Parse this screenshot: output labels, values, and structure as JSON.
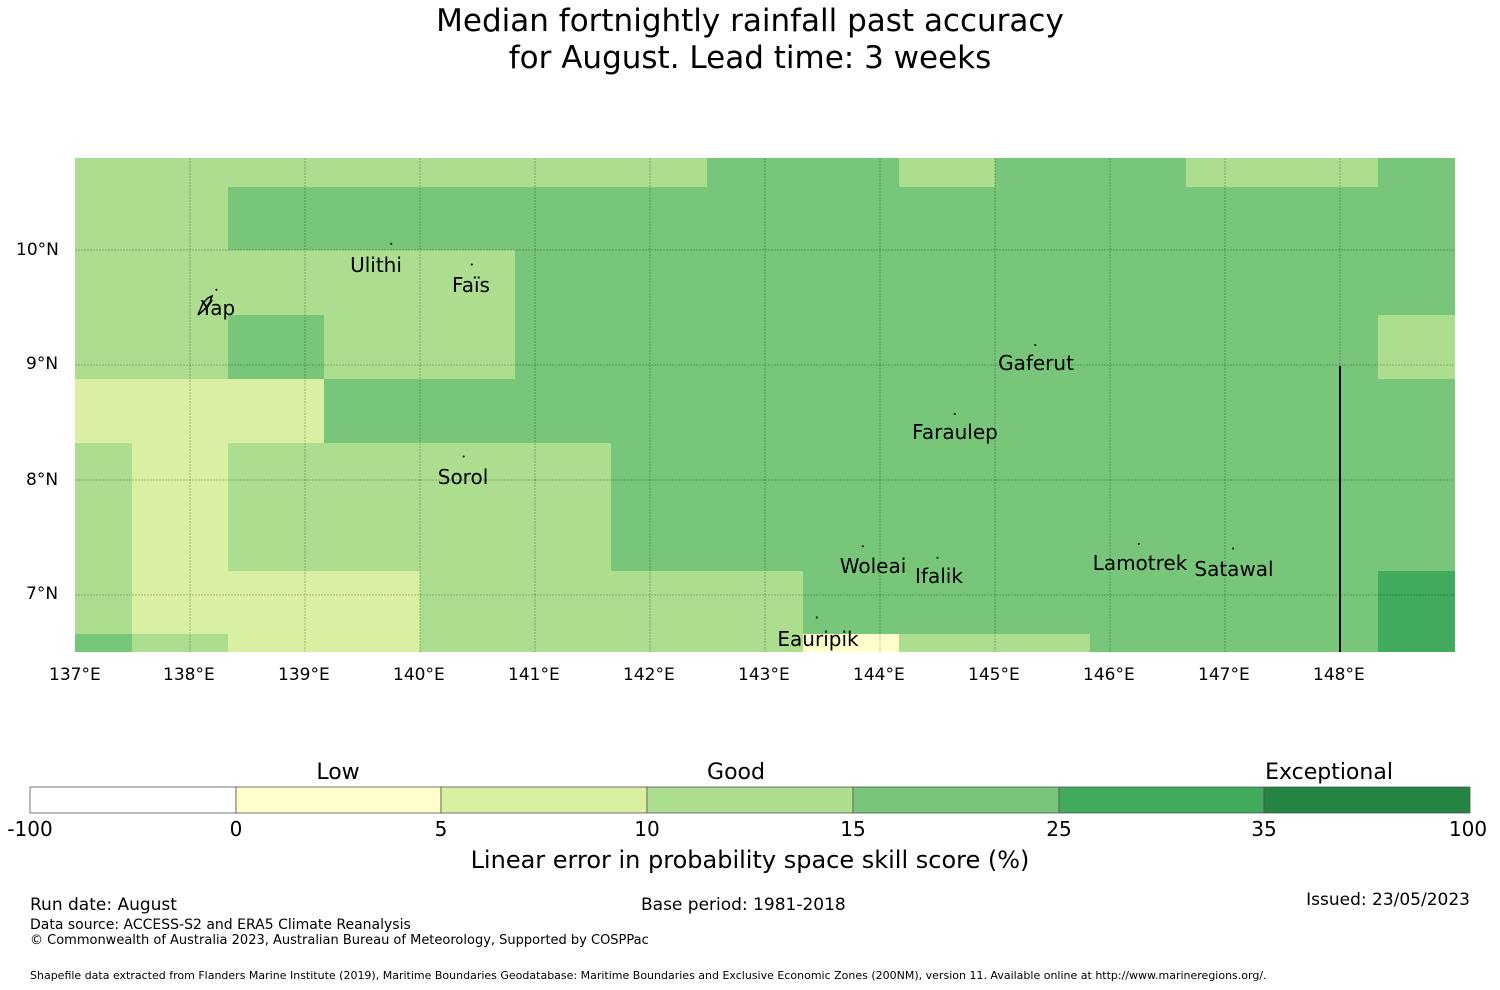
{
  "title_line1": "Median fortnightly rainfall past accuracy",
  "title_line2": "for August. Lead time: 3 weeks",
  "map": {
    "lon_range": [
      137.0,
      149.0
    ],
    "lat_range": [
      6.5,
      10.8
    ],
    "lon_ticks": [
      "137°E",
      "138°E",
      "139°E",
      "140°E",
      "141°E",
      "142°E",
      "143°E",
      "144°E",
      "145°E",
      "146°E",
      "147°E",
      "148°E"
    ],
    "lat_ticks": [
      "10°N",
      "9°N",
      "8°N",
      "7°N"
    ],
    "grid": true,
    "places": [
      {
        "name": "Ulithi",
        "lon": 139.75,
        "lat": 9.95
      },
      {
        "name": "Yap",
        "lon": 138.23,
        "lat": 9.55
      },
      {
        "name": "Faïs",
        "lon": 140.45,
        "lat": 9.77
      },
      {
        "name": "Gaferut",
        "lon": 145.35,
        "lat": 9.07
      },
      {
        "name": "Faraulep",
        "lon": 144.65,
        "lat": 8.47
      },
      {
        "name": "Sorol",
        "lon": 140.38,
        "lat": 8.1
      },
      {
        "name": "Woleai",
        "lon": 143.85,
        "lat": 7.32
      },
      {
        "name": "Ifalik",
        "lon": 144.5,
        "lat": 7.22
      },
      {
        "name": "Lamotrek",
        "lon": 146.25,
        "lat": 7.34
      },
      {
        "name": "Satawal",
        "lon": 147.07,
        "lat": 7.3
      },
      {
        "name": "Eauripik",
        "lon": 143.45,
        "lat": 6.7
      }
    ],
    "cell_category_codes": "3=5-10, 4=10-15, 5=15-25, 6=25-35"
  },
  "colorbar": {
    "categories": [
      "Low",
      "Good",
      "Exceptional"
    ],
    "ticks": [
      "-100",
      "0",
      "5",
      "10",
      "15",
      "25",
      "35",
      "100"
    ],
    "colors": [
      "#ffffff",
      "#ffffcc",
      "#d9f0a3",
      "#addd8e",
      "#78c679",
      "#41ab5d",
      "#238443"
    ],
    "label": "Linear error in probability space skill score (%)"
  },
  "footer": {
    "run_date": "Run date: August",
    "base_period": "Base period: 1981-2018",
    "issued": "Issued: 23/05/2023",
    "data_source": "Data source: ACCESS-S2 and ERA5 Climate Reanalysis",
    "copyright": "© Commonwealth of Australia 2023, Australian Bureau of Meteorology, Supported by COSPPac",
    "shapefile": "Shapefile data extracted from Flanders Marine Institute (2019), Maritime Boundaries Geodatabase: Maritime Boundaries and Exclusive Economic Zones (200NM), version 11. Available online at http://www.marineregions.org/."
  }
}
